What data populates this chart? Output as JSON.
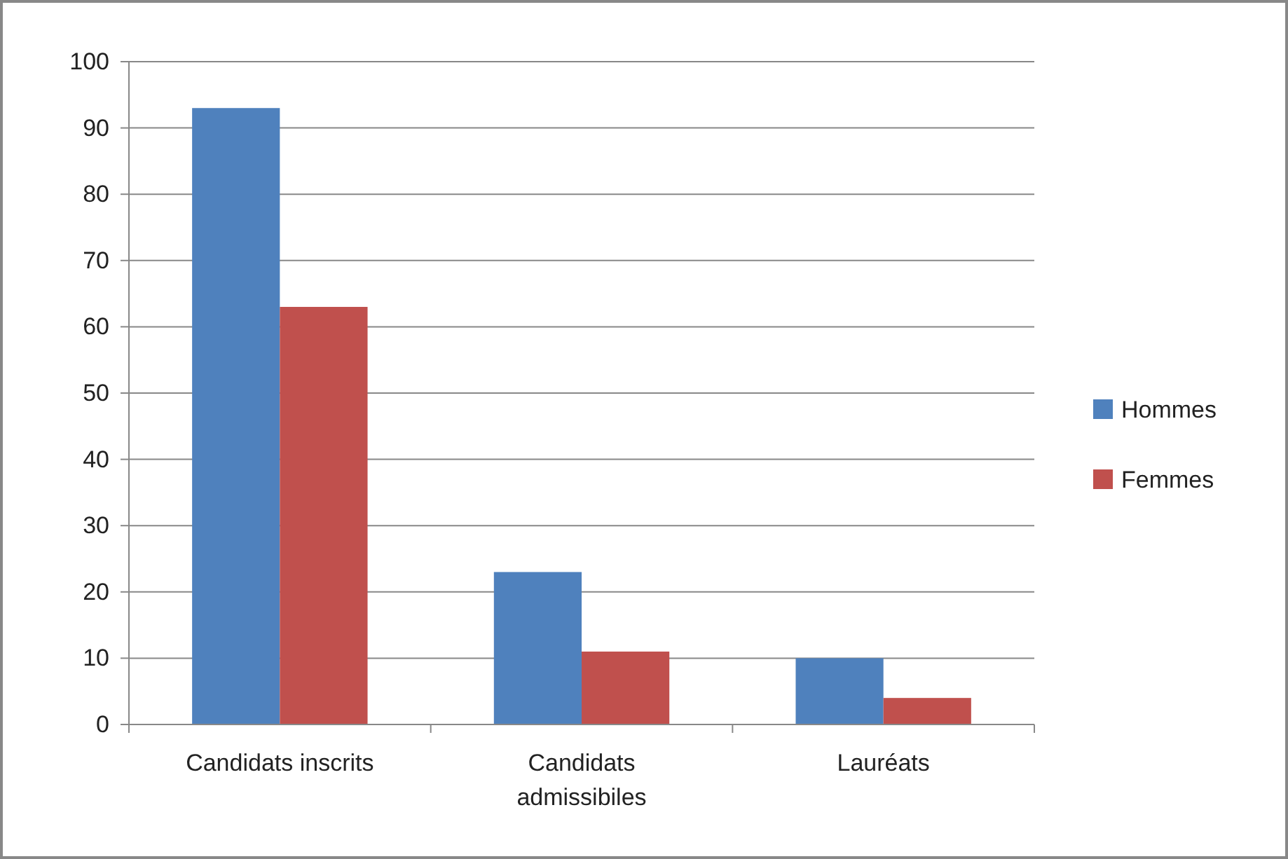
{
  "chart_data": {
    "type": "bar",
    "categories": [
      "Candidats inscrits",
      "Candidats admissibiles",
      "Lauréats"
    ],
    "series": [
      {
        "name": "Hommes",
        "color": "#4f81bd",
        "values": [
          93,
          23,
          10
        ]
      },
      {
        "name": "Femmes",
        "color": "#c0504d",
        "values": [
          63,
          11,
          4
        ]
      }
    ],
    "ylim": [
      0,
      100
    ],
    "yticks": [
      0,
      10,
      20,
      30,
      40,
      50,
      60,
      70,
      80,
      90,
      100
    ],
    "grid": "y",
    "legend": "right"
  }
}
